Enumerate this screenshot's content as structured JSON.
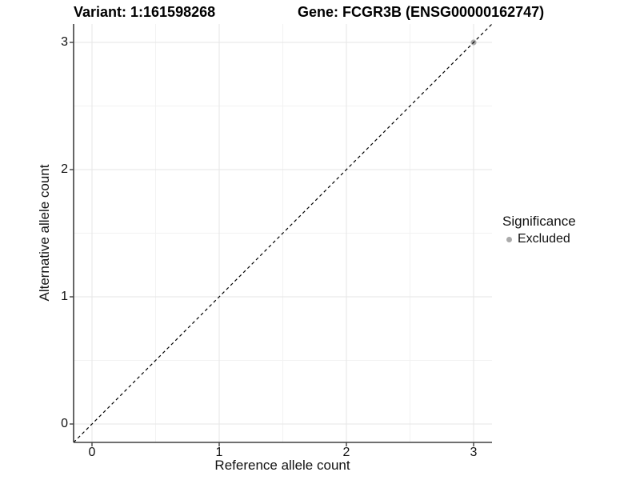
{
  "header": {
    "title_left": "Variant: 1:161598268",
    "title_right": "Gene: FCGR3B (ENSG00000162747)"
  },
  "chart_data": {
    "type": "scatter",
    "xlabel": "Reference allele count",
    "ylabel": "Alternative allele count",
    "xlim": [
      -0.145,
      3.145
    ],
    "ylim": [
      -0.145,
      3.145
    ],
    "x_ticks": [
      0,
      1,
      2,
      3
    ],
    "y_ticks": [
      0,
      1,
      2,
      3
    ],
    "x_minor_ticks": [
      0.5,
      1.5,
      2.5
    ],
    "y_minor_ticks": [
      0.5,
      1.5,
      2.5
    ],
    "grid": true,
    "points": [
      {
        "x": 3,
        "y": 3,
        "significance": "Excluded"
      }
    ],
    "reference_line": {
      "type": "identity",
      "slope": 1,
      "intercept": 0,
      "style": "dashed"
    },
    "legend": {
      "title": "Significance",
      "position": "right",
      "items": [
        {
          "label": "Excluded",
          "color": "#aaaaaa"
        }
      ]
    }
  },
  "colors": {
    "background": "#ffffff",
    "excluded_point": "#aaaaaa",
    "axis_line": "#404040",
    "tick_mark": "#404040",
    "grid_major": "#e5e5e5",
    "grid_minor": "#f2f2f2",
    "reference_line": "#000000",
    "text": "#000000"
  }
}
